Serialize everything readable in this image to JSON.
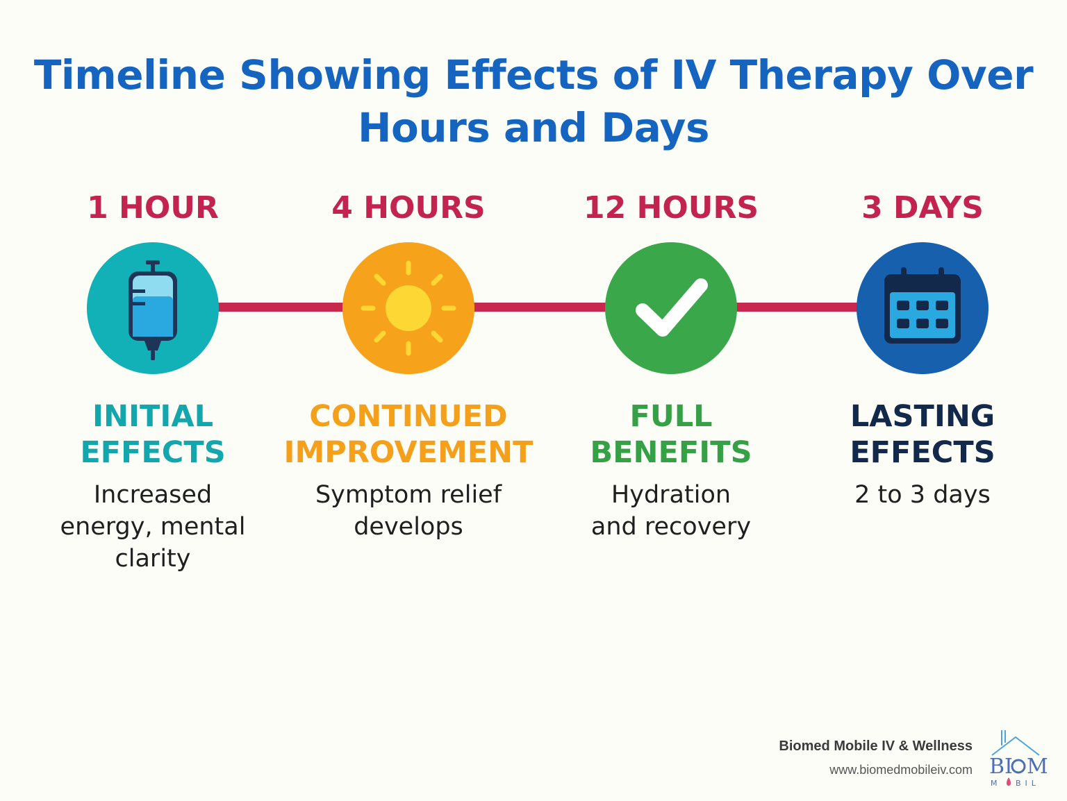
{
  "title": "Timeline Showing Effects of IV Therapy Over Hours and Days",
  "colors": {
    "title": "#1565c0",
    "connector": "#c8284e",
    "time_label": "#c2244f"
  },
  "stages": [
    {
      "time": "1 HOUR",
      "heading_line1": "INITIAL",
      "heading_line2": "EFFECTS",
      "desc_line1": "Increased",
      "desc_line2": "energy, mental",
      "desc_line3": "clarity",
      "icon": "iv-bag-icon",
      "circle_color": "#12b0b7",
      "heading_color": "#14a6ad"
    },
    {
      "time": "4 HOURS",
      "heading_line1": "CONTINUED",
      "heading_line2": "IMPROVEMENT",
      "desc_line1": "Symptom relief",
      "desc_line2": "develops",
      "desc_line3": "",
      "icon": "sun-icon",
      "circle_color": "#f7a21b",
      "heading_color": "#f5a01a"
    },
    {
      "time": "12 HOURS",
      "heading_line1": "FULL",
      "heading_line2": "BENEFITS",
      "desc_line1": "Hydration",
      "desc_line2": "and recovery",
      "desc_line3": "",
      "icon": "checkmark-icon",
      "circle_color": "#3aa84a",
      "heading_color": "#35a046"
    },
    {
      "time": "3 DAYS",
      "heading_line1": "LASTING",
      "heading_line2": "EFFECTS",
      "desc_line1": "2 to 3 days",
      "desc_line2": "",
      "desc_line3": "",
      "icon": "calendar-icon",
      "circle_color": "#1660ad",
      "heading_color": "#13294b"
    }
  ],
  "brand": {
    "name": "Biomed Mobile IV & Wellness",
    "url": "www.biomedmobileiv.com",
    "logo_icon": "biomed-logo-icon"
  }
}
